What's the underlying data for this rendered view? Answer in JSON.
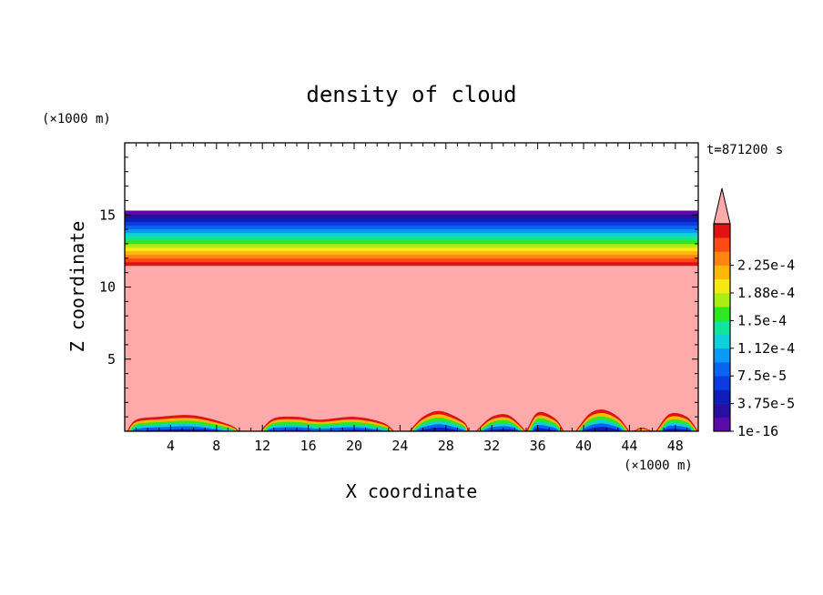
{
  "chart_data": {
    "type": "heatmap",
    "title": "density of cloud",
    "xlabel": "X coordinate",
    "ylabel": "Z coordinate",
    "x_unit": "(×1000 m)",
    "y_unit": "(×1000 m)",
    "time_label": "t=871200 s",
    "xlim": [
      0,
      50
    ],
    "ylim": [
      0,
      20
    ],
    "x_ticks": [
      4,
      8,
      12,
      16,
      20,
      24,
      28,
      32,
      36,
      40,
      44,
      48
    ],
    "x_tick_labels": [
      "4",
      "8",
      "12",
      "16",
      "20",
      "24",
      "28",
      "32",
      "36",
      "40",
      "44",
      "48"
    ],
    "y_ticks": [
      5,
      10,
      15
    ],
    "y_tick_labels": [
      "5",
      "10",
      "15"
    ],
    "colorbar": {
      "levels": [
        1e-16,
        1.875e-05,
        3.75e-05,
        5.625e-05,
        7.5e-05,
        9.375e-05,
        0.0001125,
        0.00013125,
        0.00015,
        0.00016875,
        0.0001875,
        0.00020625,
        0.000225,
        0.00024375
      ],
      "labeled_levels": [
        "1e-16",
        "3.75e-5",
        "7.5e-5",
        "1.12e-4",
        "1.5e-4",
        "1.88e-4",
        "2.25e-4"
      ],
      "colors": [
        "#5c0aa8",
        "#2a0ea0",
        "#0d1fb8",
        "#0a3ce0",
        "#0a64f0",
        "#0a9af5",
        "#0fd0d8",
        "#12e39a",
        "#2ee622",
        "#a8ee14",
        "#f5e814",
        "#ffb80a",
        "#ff8410",
        "#ff4a14",
        "#e01212"
      ],
      "overflow_color": "#ffaaaa"
    },
    "background_fill": "#ffaaaa",
    "cloud_layer": {
      "z_base": 11.5,
      "z_top": 15.3
    },
    "surface_cells": [
      {
        "x_start": 0.2,
        "x_end": 10.0,
        "peaks": [
          [
            1,
            0.8
          ],
          [
            3,
            1.0
          ],
          [
            6,
            1.1
          ],
          [
            9,
            0.5
          ]
        ]
      },
      {
        "x_start": 11.8,
        "x_end": 23.5,
        "peaks": [
          [
            13,
            0.9
          ],
          [
            15,
            1.0
          ],
          [
            17,
            0.8
          ],
          [
            20,
            1.0
          ],
          [
            22.5,
            0.6
          ]
        ]
      },
      {
        "x_start": 24.8,
        "x_end": 30.0,
        "peaks": [
          [
            26,
            1.0
          ],
          [
            27.5,
            1.4
          ],
          [
            29.5,
            0.7
          ]
        ]
      },
      {
        "x_start": 30.6,
        "x_end": 35.0,
        "peaks": [
          [
            32,
            1.0
          ],
          [
            33.5,
            1.1
          ]
        ]
      },
      {
        "x_start": 35.0,
        "x_end": 38.3,
        "peaks": [
          [
            36,
            1.3
          ],
          [
            37.5,
            0.9
          ]
        ]
      },
      {
        "x_start": 39.3,
        "x_end": 44.0,
        "peaks": [
          [
            40.5,
            1.2
          ],
          [
            41.7,
            1.5
          ],
          [
            43,
            1.0
          ]
        ]
      },
      {
        "x_start": 44.3,
        "x_end": 46.0,
        "peaks": [
          [
            45.1,
            0.25
          ]
        ]
      },
      {
        "x_start": 46.3,
        "x_end": 50.0,
        "peaks": [
          [
            47.5,
            1.2
          ],
          [
            49,
            1.0
          ]
        ]
      }
    ]
  }
}
